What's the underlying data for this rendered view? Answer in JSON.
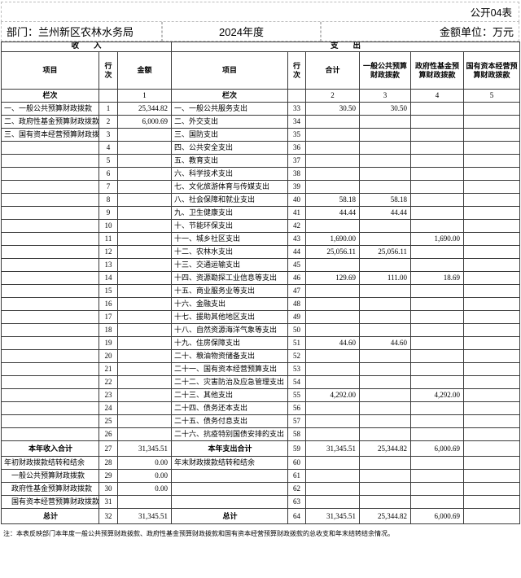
{
  "meta": {
    "sheet_label": "公开04表",
    "department_label": "部门：兰州新区农林水务局",
    "year_label": "2024年度",
    "unit_label": "金额单位：万元",
    "note": "注：本表反映部门本年度一般公共预算财政拨款、政府性基金预算财政拨款和国有资本经营预算财政拨款的总收支和年末结转结余情况。"
  },
  "table": {
    "sections": {
      "income": "收入",
      "expense": "支出"
    },
    "columns": {
      "item": "项目",
      "row_no": "行\n次",
      "amount": "金额",
      "total": "合计",
      "general_budget": "一般公共预算财政拨款",
      "gov_fund": "政府性基金预算财政拨款",
      "state_capital": "国有资本经营预算财政拨款",
      "lanci": "栏次",
      "col_numbers": [
        "1",
        "2",
        "3",
        "4",
        "5"
      ]
    },
    "rows": [
      {
        "income": {
          "label": "一、一般公共预算财政拨款",
          "no": "1",
          "amount": "25,344.82",
          "style": ""
        },
        "expense": {
          "label": "一、一般公共服务支出",
          "no": "33",
          "total": "30.50",
          "general": "30.50",
          "govfund": "",
          "statecap": "",
          "style": ""
        }
      },
      {
        "income": {
          "label": "二、政府性基金预算财政拨款",
          "no": "2",
          "amount": "6,000.69",
          "style": ""
        },
        "expense": {
          "label": "二、外交支出",
          "no": "34",
          "total": "",
          "general": "",
          "govfund": "",
          "statecap": "",
          "style": ""
        }
      },
      {
        "income": {
          "label": "三、国有资本经营预算财政拨款",
          "no": "3",
          "amount": "",
          "style": ""
        },
        "expense": {
          "label": "三、国防支出",
          "no": "35",
          "total": "",
          "general": "",
          "govfund": "",
          "statecap": "",
          "style": ""
        }
      },
      {
        "income": {
          "label": "",
          "no": "4",
          "amount": "",
          "style": ""
        },
        "expense": {
          "label": "四、公共安全支出",
          "no": "36",
          "total": "",
          "general": "",
          "govfund": "",
          "statecap": "",
          "style": ""
        }
      },
      {
        "income": {
          "label": "",
          "no": "5",
          "amount": "",
          "style": ""
        },
        "expense": {
          "label": "五、教育支出",
          "no": "37",
          "total": "",
          "general": "",
          "govfund": "",
          "statecap": "",
          "style": ""
        }
      },
      {
        "income": {
          "label": "",
          "no": "6",
          "amount": "",
          "style": ""
        },
        "expense": {
          "label": "六、科学技术支出",
          "no": "38",
          "total": "",
          "general": "",
          "govfund": "",
          "statecap": "",
          "style": ""
        }
      },
      {
        "income": {
          "label": "",
          "no": "7",
          "amount": "",
          "style": ""
        },
        "expense": {
          "label": "七、文化旅游体育与传媒支出",
          "no": "39",
          "total": "",
          "general": "",
          "govfund": "",
          "statecap": "",
          "style": ""
        }
      },
      {
        "income": {
          "label": "",
          "no": "8",
          "amount": "",
          "style": ""
        },
        "expense": {
          "label": "八、社会保障和就业支出",
          "no": "40",
          "total": "58.18",
          "general": "58.18",
          "govfund": "",
          "statecap": "",
          "style": ""
        }
      },
      {
        "income": {
          "label": "",
          "no": "9",
          "amount": "",
          "style": ""
        },
        "expense": {
          "label": "九、卫生健康支出",
          "no": "41",
          "total": "44.44",
          "general": "44.44",
          "govfund": "",
          "statecap": "",
          "style": ""
        }
      },
      {
        "income": {
          "label": "",
          "no": "10",
          "amount": "",
          "style": ""
        },
        "expense": {
          "label": "十、节能环保支出",
          "no": "42",
          "total": "",
          "general": "",
          "govfund": "",
          "statecap": "",
          "style": ""
        }
      },
      {
        "income": {
          "label": "",
          "no": "11",
          "amount": "",
          "style": ""
        },
        "expense": {
          "label": "十一、城乡社区支出",
          "no": "43",
          "total": "1,690.00",
          "general": "",
          "govfund": "1,690.00",
          "statecap": "",
          "style": ""
        }
      },
      {
        "income": {
          "label": "",
          "no": "12",
          "amount": "",
          "style": ""
        },
        "expense": {
          "label": "十二、农林水支出",
          "no": "44",
          "total": "25,056.11",
          "general": "25,056.11",
          "govfund": "",
          "statecap": "",
          "style": ""
        }
      },
      {
        "income": {
          "label": "",
          "no": "13",
          "amount": "",
          "style": ""
        },
        "expense": {
          "label": "十三、交通运输支出",
          "no": "45",
          "total": "",
          "general": "",
          "govfund": "",
          "statecap": "",
          "style": ""
        }
      },
      {
        "income": {
          "label": "",
          "no": "14",
          "amount": "",
          "style": ""
        },
        "expense": {
          "label": "十四、资源勘探工业信息等支出",
          "no": "46",
          "total": "129.69",
          "general": "111.00",
          "govfund": "18.69",
          "statecap": "",
          "style": ""
        }
      },
      {
        "income": {
          "label": "",
          "no": "15",
          "amount": "",
          "style": ""
        },
        "expense": {
          "label": "十五、商业服务业等支出",
          "no": "47",
          "total": "",
          "general": "",
          "govfund": "",
          "statecap": "",
          "style": ""
        }
      },
      {
        "income": {
          "label": "",
          "no": "16",
          "amount": "",
          "style": ""
        },
        "expense": {
          "label": "十六、金融支出",
          "no": "48",
          "total": "",
          "general": "",
          "govfund": "",
          "statecap": "",
          "style": ""
        }
      },
      {
        "income": {
          "label": "",
          "no": "17",
          "amount": "",
          "style": ""
        },
        "expense": {
          "label": "十七、援助其他地区支出",
          "no": "49",
          "total": "",
          "general": "",
          "govfund": "",
          "statecap": "",
          "style": ""
        }
      },
      {
        "income": {
          "label": "",
          "no": "18",
          "amount": "",
          "style": ""
        },
        "expense": {
          "label": "十八、自然资源海洋气象等支出",
          "no": "50",
          "total": "",
          "general": "",
          "govfund": "",
          "statecap": "",
          "style": ""
        }
      },
      {
        "income": {
          "label": "",
          "no": "19",
          "amount": "",
          "style": ""
        },
        "expense": {
          "label": "十九、住房保障支出",
          "no": "51",
          "total": "44.60",
          "general": "44.60",
          "govfund": "",
          "statecap": "",
          "style": ""
        }
      },
      {
        "income": {
          "label": "",
          "no": "20",
          "amount": "",
          "style": ""
        },
        "expense": {
          "label": "二十、粮油物资储备支出",
          "no": "52",
          "total": "",
          "general": "",
          "govfund": "",
          "statecap": "",
          "style": ""
        }
      },
      {
        "income": {
          "label": "",
          "no": "21",
          "amount": "",
          "style": ""
        },
        "expense": {
          "label": "二十一、国有资本经营预算支出",
          "no": "53",
          "total": "",
          "general": "",
          "govfund": "",
          "statecap": "",
          "style": ""
        }
      },
      {
        "income": {
          "label": "",
          "no": "22",
          "amount": "",
          "style": ""
        },
        "expense": {
          "label": "二十二、灾害防治及应急管理支出",
          "no": "54",
          "total": "",
          "general": "",
          "govfund": "",
          "statecap": "",
          "style": ""
        }
      },
      {
        "income": {
          "label": "",
          "no": "23",
          "amount": "",
          "style": ""
        },
        "expense": {
          "label": "二十三、其他支出",
          "no": "55",
          "total": "4,292.00",
          "general": "",
          "govfund": "4,292.00",
          "statecap": "",
          "style": ""
        }
      },
      {
        "income": {
          "label": "",
          "no": "24",
          "amount": "",
          "style": ""
        },
        "expense": {
          "label": "二十四、债务还本支出",
          "no": "56",
          "total": "",
          "general": "",
          "govfund": "",
          "statecap": "",
          "style": ""
        }
      },
      {
        "income": {
          "label": "",
          "no": "25",
          "amount": "",
          "style": ""
        },
        "expense": {
          "label": "二十五、债务付息支出",
          "no": "57",
          "total": "",
          "general": "",
          "govfund": "",
          "statecap": "",
          "style": ""
        }
      },
      {
        "income": {
          "label": "",
          "no": "26",
          "amount": "",
          "style": ""
        },
        "expense": {
          "label": "二十六、抗疫特别国债安排的支出",
          "no": "58",
          "total": "",
          "general": "",
          "govfund": "",
          "statecap": "",
          "style": ""
        }
      },
      {
        "income": {
          "label": "本年收入合计",
          "no": "27",
          "amount": "31,345.51",
          "style": "summary"
        },
        "expense": {
          "label": "本年支出合计",
          "no": "59",
          "total": "31,345.51",
          "general": "25,344.82",
          "govfund": "6,000.69",
          "statecap": "",
          "style": "summary"
        }
      },
      {
        "income": {
          "label": "年初财政拨款结转和结余",
          "no": "28",
          "amount": "0.00",
          "style": ""
        },
        "expense": {
          "label": "年末财政拨款结转和结余",
          "no": "60",
          "total": "",
          "general": "",
          "govfund": "",
          "statecap": "",
          "style": ""
        }
      },
      {
        "income": {
          "label": "一般公共预算财政拨款",
          "no": "29",
          "amount": "0.00",
          "style": "indent"
        },
        "expense": {
          "label": "",
          "no": "61",
          "total": "",
          "general": "",
          "govfund": "",
          "statecap": "",
          "style": ""
        }
      },
      {
        "income": {
          "label": "政府性基金预算财政拨款",
          "no": "30",
          "amount": "0.00",
          "style": "indent"
        },
        "expense": {
          "label": "",
          "no": "62",
          "total": "",
          "general": "",
          "govfund": "",
          "statecap": "",
          "style": ""
        }
      },
      {
        "income": {
          "label": "国有资本经营预算财政拨款",
          "no": "31",
          "amount": "",
          "style": "indent"
        },
        "expense": {
          "label": "",
          "no": "63",
          "total": "",
          "general": "",
          "govfund": "",
          "statecap": "",
          "style": ""
        }
      },
      {
        "income": {
          "label": "总计",
          "no": "32",
          "amount": "31,345.51",
          "style": "summary"
        },
        "expense": {
          "label": "总计",
          "no": "64",
          "total": "31,345.51",
          "general": "25,344.82",
          "govfund": "6,000.69",
          "statecap": "",
          "style": "summary"
        }
      }
    ]
  }
}
